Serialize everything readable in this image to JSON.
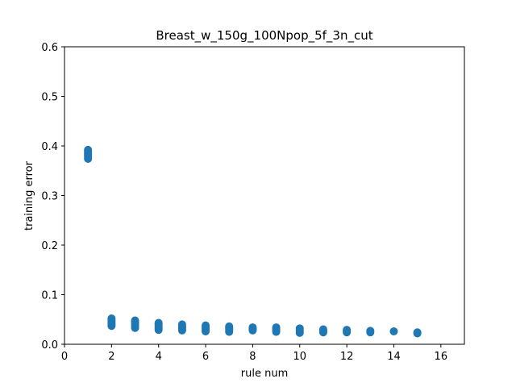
{
  "chart_data": {
    "type": "scatter",
    "title": "Breast_w_150g_100Npop_5f_3n_cut",
    "xlabel": "rule num",
    "ylabel": "training error",
    "xlim": [
      0,
      17
    ],
    "ylim": [
      0,
      0.6
    ],
    "xticks": [
      0,
      2,
      4,
      6,
      8,
      10,
      12,
      14,
      16
    ],
    "yticks": [
      0.0,
      0.1,
      0.2,
      0.3,
      0.4,
      0.5,
      0.6
    ],
    "xtick_labels": [
      "0",
      "2",
      "4",
      "6",
      "8",
      "10",
      "12",
      "14",
      "16"
    ],
    "ytick_labels": [
      "0.0",
      "0.1",
      "0.2",
      "0.3",
      "0.4",
      "0.5",
      "0.6"
    ],
    "grid": false,
    "marker_color": "#1f77b4",
    "series": [
      {
        "points": [
          [
            1,
            0.374
          ],
          [
            1,
            0.377
          ],
          [
            1,
            0.38
          ],
          [
            1,
            0.383
          ],
          [
            1,
            0.386
          ],
          [
            1,
            0.389
          ],
          [
            1,
            0.392
          ],
          [
            2,
            0.037
          ],
          [
            2,
            0.04
          ],
          [
            2,
            0.043
          ],
          [
            2,
            0.046
          ],
          [
            2,
            0.049
          ],
          [
            2,
            0.052
          ],
          [
            3,
            0.033
          ],
          [
            3,
            0.036
          ],
          [
            3,
            0.039
          ],
          [
            3,
            0.042
          ],
          [
            3,
            0.045
          ],
          [
            3,
            0.048
          ],
          [
            4,
            0.029
          ],
          [
            4,
            0.032
          ],
          [
            4,
            0.035
          ],
          [
            4,
            0.038
          ],
          [
            4,
            0.041
          ],
          [
            4,
            0.043
          ],
          [
            5,
            0.028
          ],
          [
            5,
            0.031
          ],
          [
            5,
            0.034
          ],
          [
            5,
            0.037
          ],
          [
            5,
            0.04
          ],
          [
            6,
            0.026
          ],
          [
            6,
            0.029
          ],
          [
            6,
            0.032
          ],
          [
            6,
            0.035
          ],
          [
            6,
            0.038
          ],
          [
            7,
            0.025
          ],
          [
            7,
            0.028
          ],
          [
            7,
            0.031
          ],
          [
            7,
            0.034
          ],
          [
            7,
            0.036
          ],
          [
            8,
            0.028
          ],
          [
            8,
            0.031
          ],
          [
            8,
            0.034
          ],
          [
            9,
            0.025
          ],
          [
            9,
            0.028
          ],
          [
            9,
            0.031
          ],
          [
            9,
            0.034
          ],
          [
            10,
            0.023
          ],
          [
            10,
            0.026
          ],
          [
            10,
            0.029
          ],
          [
            10,
            0.032
          ],
          [
            11,
            0.024
          ],
          [
            11,
            0.027
          ],
          [
            11,
            0.03
          ],
          [
            12,
            0.024
          ],
          [
            12,
            0.027
          ],
          [
            12,
            0.029
          ],
          [
            13,
            0.024
          ],
          [
            13,
            0.027
          ],
          [
            14,
            0.026
          ],
          [
            15,
            0.022
          ],
          [
            15,
            0.024
          ]
        ]
      }
    ]
  }
}
